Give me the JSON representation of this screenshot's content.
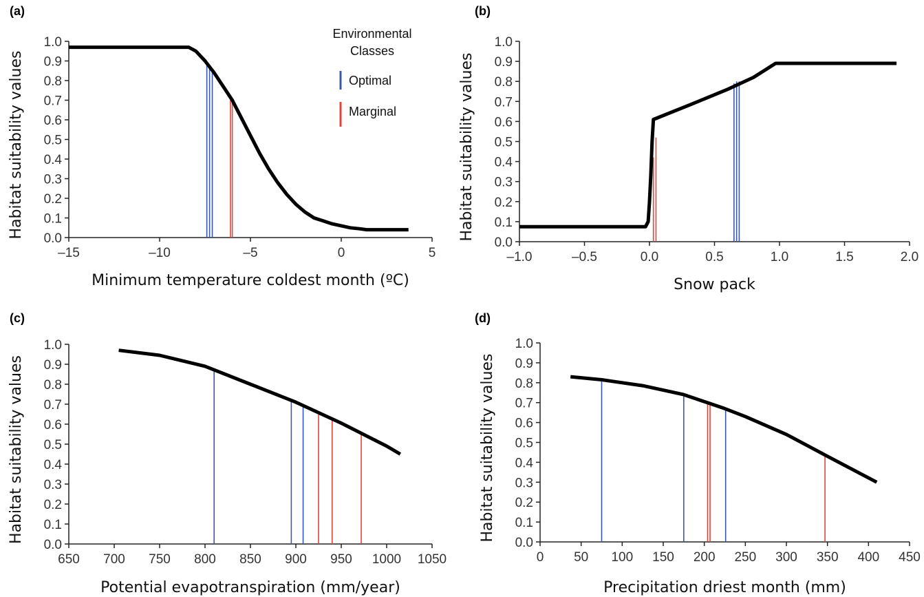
{
  "colors": {
    "optimal": "#3b57a8",
    "marginal": "#e0453a",
    "curve": "#000000"
  },
  "legend": {
    "title_line1": "Environmental",
    "title_line2": "Classes",
    "entries": [
      {
        "label": "Optimal",
        "class": "optimal"
      },
      {
        "label": "Marginal",
        "class": "marginal"
      }
    ]
  },
  "chart_data": [
    {
      "panel": "(a)",
      "type": "line",
      "xlabel": "Minimum temperature coldest month (ºC)",
      "ylabel": "Habitat suitability values",
      "xlim": [
        -15,
        5
      ],
      "ylim": [
        0,
        1
      ],
      "xticks": [
        -15,
        -10,
        -5,
        0,
        5
      ],
      "xtick_labels": [
        "–15",
        "–10",
        "–5",
        "0",
        "5"
      ],
      "yticks": [
        0,
        0.1,
        0.2,
        0.3,
        0.4,
        0.5,
        0.6,
        0.7,
        0.8,
        0.9,
        1.0
      ],
      "ytick_labels": [
        "0.0",
        "0.1",
        "0.2",
        "0.3",
        "0.4",
        "0.5",
        "0.6",
        "0.7",
        "0.8",
        "0.9",
        "1.0"
      ],
      "curve": {
        "x": [
          -15,
          -10,
          -8.4,
          -8.0,
          -7.5,
          -7.0,
          -6.5,
          -6.0,
          -5.5,
          -5.0,
          -4.5,
          -4.0,
          -3.5,
          -3.0,
          -2.5,
          -2.0,
          -1.5,
          -1.0,
          -0.5,
          0,
          0.5,
          1.0,
          1.4,
          2.0,
          3.7
        ],
        "y": [
          0.97,
          0.97,
          0.97,
          0.95,
          0.9,
          0.84,
          0.77,
          0.7,
          0.61,
          0.52,
          0.43,
          0.35,
          0.28,
          0.22,
          0.17,
          0.13,
          0.1,
          0.085,
          0.07,
          0.06,
          0.05,
          0.045,
          0.04,
          0.04,
          0.04
        ]
      },
      "vlines": [
        {
          "x": -7.4,
          "y": 0.89,
          "class": "optimal"
        },
        {
          "x": -7.25,
          "y": 0.87,
          "class": "optimal"
        },
        {
          "x": -7.1,
          "y": 0.85,
          "class": "optimal"
        },
        {
          "x": -6.1,
          "y": 0.7,
          "class": "marginal"
        },
        {
          "x": -6.0,
          "y": 0.69,
          "class": "marginal"
        }
      ]
    },
    {
      "panel": "(b)",
      "type": "line",
      "xlabel": "Snow pack",
      "ylabel": "Habitat suitability values",
      "xlim": [
        -1.0,
        2.0
      ],
      "ylim": [
        0,
        1
      ],
      "xticks": [
        -1.0,
        -0.5,
        0.0,
        0.5,
        1.0,
        1.5,
        2.0
      ],
      "xtick_labels": [
        "–1.0",
        "–0.5",
        "0.0",
        "0.5",
        "1.0",
        "1.5",
        "2.0"
      ],
      "yticks": [
        0,
        0.1,
        0.2,
        0.3,
        0.4,
        0.5,
        0.6,
        0.7,
        0.8,
        0.9,
        1.0
      ],
      "ytick_labels": [
        "0.0",
        "0.1",
        "0.2",
        "0.3",
        "0.4",
        "0.5",
        "0.6",
        "0.7",
        "0.8",
        "0.9",
        "1.0"
      ],
      "curve": {
        "x": [
          -1.0,
          -0.03,
          -0.01,
          0.0,
          0.01,
          0.02,
          0.03,
          0.3,
          0.6,
          0.8,
          0.97,
          1.9
        ],
        "y": [
          0.075,
          0.075,
          0.1,
          0.2,
          0.33,
          0.5,
          0.61,
          0.68,
          0.76,
          0.82,
          0.89,
          0.89
        ]
      },
      "vlines": [
        {
          "x": 0.03,
          "y": 0.42,
          "class": "marginal"
        },
        {
          "x": 0.05,
          "y": 0.52,
          "class": "marginal"
        },
        {
          "x": 0.65,
          "y": 0.79,
          "class": "optimal"
        },
        {
          "x": 0.67,
          "y": 0.8,
          "class": "optimal"
        },
        {
          "x": 0.69,
          "y": 0.8,
          "class": "optimal"
        }
      ]
    },
    {
      "panel": "(c)",
      "type": "line",
      "xlabel": "Potential evapotranspiration (mm/year)",
      "ylabel": "Habitat suitability values",
      "xlim": [
        650,
        1050
      ],
      "ylim": [
        0,
        1
      ],
      "xticks": [
        650,
        700,
        750,
        800,
        850,
        900,
        950,
        1000,
        1050
      ],
      "xtick_labels": [
        "650",
        "700",
        "750",
        "800",
        "850",
        "900",
        "950",
        "1000",
        "1050"
      ],
      "yticks": [
        0,
        0.1,
        0.2,
        0.3,
        0.4,
        0.5,
        0.6,
        0.7,
        0.8,
        0.9,
        1.0
      ],
      "ytick_labels": [
        "0.0",
        "0.1",
        "0.2",
        "0.3",
        "0.4",
        "0.5",
        "0.6",
        "0.7",
        "0.8",
        "0.9",
        "1.0"
      ],
      "curve": {
        "x": [
          705,
          750,
          800,
          850,
          900,
          950,
          1000,
          1015
        ],
        "y": [
          0.97,
          0.945,
          0.89,
          0.8,
          0.71,
          0.605,
          0.49,
          0.45
        ]
      },
      "vlines": [
        {
          "x": 810,
          "y": 0.87,
          "class": "optimal"
        },
        {
          "x": 895,
          "y": 0.72,
          "class": "optimal"
        },
        {
          "x": 908,
          "y": 0.69,
          "class": "optimal"
        },
        {
          "x": 925,
          "y": 0.65,
          "class": "marginal"
        },
        {
          "x": 940,
          "y": 0.62,
          "class": "marginal"
        },
        {
          "x": 972,
          "y": 0.55,
          "class": "marginal"
        }
      ]
    },
    {
      "panel": "(d)",
      "type": "line",
      "xlabel": "Precipitation driest month (mm)",
      "ylabel": "Habitat suitability values",
      "xlim": [
        0,
        450
      ],
      "ylim": [
        0,
        1
      ],
      "xticks": [
        0,
        50,
        100,
        150,
        200,
        250,
        300,
        350,
        400,
        450
      ],
      "xtick_labels": [
        "0",
        "50",
        "100",
        "150",
        "200",
        "250",
        "300",
        "350",
        "400",
        "450"
      ],
      "yticks": [
        0,
        0.1,
        0.2,
        0.3,
        0.4,
        0.5,
        0.6,
        0.7,
        0.8,
        0.9,
        1.0
      ],
      "ytick_labels": [
        "0.0",
        "0.1",
        "0.2",
        "0.3",
        "0.4",
        "0.5",
        "0.6",
        "0.7",
        "0.8",
        "0.9",
        "1.0"
      ],
      "curve": {
        "x": [
          37,
          75,
          125,
          175,
          200,
          225,
          250,
          300,
          350,
          410
        ],
        "y": [
          0.83,
          0.815,
          0.785,
          0.74,
          0.705,
          0.67,
          0.63,
          0.54,
          0.43,
          0.3
        ]
      },
      "vlines": [
        {
          "x": 75,
          "y": 0.82,
          "class": "optimal"
        },
        {
          "x": 175,
          "y": 0.74,
          "class": "optimal"
        },
        {
          "x": 204,
          "y": 0.7,
          "class": "marginal"
        },
        {
          "x": 207,
          "y": 0.7,
          "class": "marginal"
        },
        {
          "x": 226,
          "y": 0.67,
          "class": "optimal"
        },
        {
          "x": 347,
          "y": 0.43,
          "class": "marginal"
        }
      ]
    }
  ]
}
